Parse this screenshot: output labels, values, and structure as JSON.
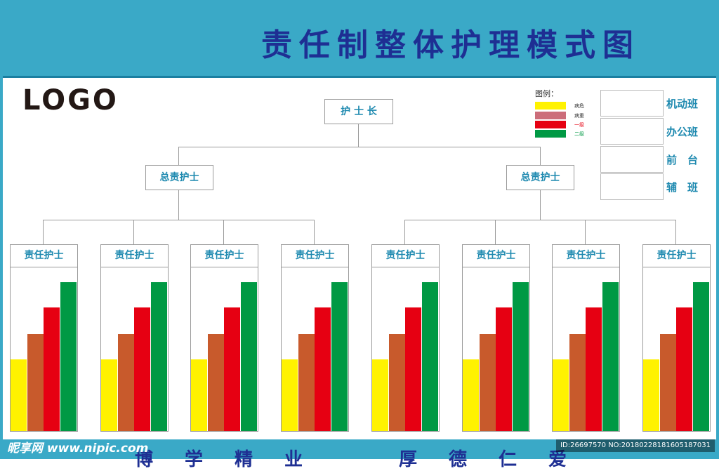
{
  "header": {
    "title": "责任制整体护理模式图"
  },
  "logo": "LOGO",
  "legend": {
    "title": "图例：",
    "items": [
      {
        "label": "病危",
        "color": "#fff200",
        "text_color": "#333333"
      },
      {
        "label": "病重",
        "color": "#cc6d7a",
        "text_color": "#333333"
      },
      {
        "label": "一级",
        "color": "#e60012",
        "text_color": "#e60012"
      },
      {
        "label": "二级",
        "color": "#009944",
        "text_color": "#009944"
      }
    ]
  },
  "shifts": [
    "机动班",
    "办公班",
    "前　台",
    "辅　班"
  ],
  "org": {
    "head": "护 士 长",
    "senior_label": "总责护士",
    "nurse_label": "责任护士"
  },
  "card_bars": [
    {
      "color": "#fff200",
      "level": 0.48
    },
    {
      "color": "#c85a2c",
      "level": 0.65
    },
    {
      "color": "#e60012",
      "level": 0.83
    },
    {
      "color": "#009944",
      "level": 1.0
    }
  ],
  "footer": {
    "motto_left": "博学精业",
    "motto_right": "厚德仁爱"
  },
  "watermark": {
    "left": "昵享网 www.nipic.com",
    "right": "ID:26697570 NO:20180228181605187031"
  }
}
